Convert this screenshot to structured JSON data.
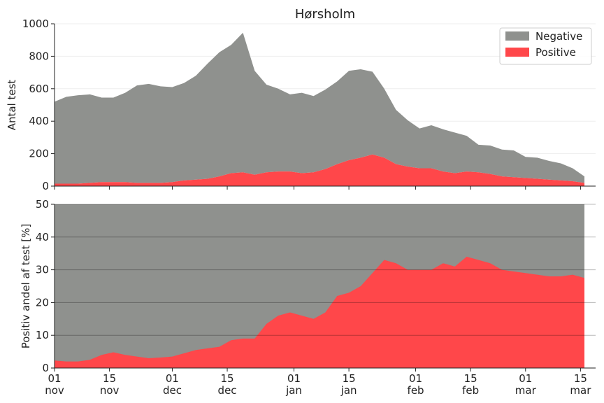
{
  "chart_data": [
    {
      "type": "area",
      "stacked": true,
      "title": "Hørsholm",
      "ylabel": "Antal test",
      "xlabel": "",
      "ylim": [
        0,
        1000
      ],
      "yticks": [
        0,
        200,
        400,
        600,
        800,
        1000
      ],
      "legend": "top-right",
      "grid": true,
      "x": [
        "11-01",
        "11-04",
        "11-07",
        "11-10",
        "11-13",
        "11-16",
        "11-19",
        "11-22",
        "11-25",
        "11-28",
        "12-01",
        "12-04",
        "12-07",
        "12-10",
        "12-13",
        "12-16",
        "12-19",
        "12-22",
        "12-25",
        "12-28",
        "12-31",
        "01-03",
        "01-06",
        "01-09",
        "01-12",
        "01-15",
        "01-18",
        "01-21",
        "01-24",
        "01-27",
        "01-30",
        "02-02",
        "02-05",
        "02-08",
        "02-11",
        "02-14",
        "02-17",
        "02-20",
        "02-23",
        "02-26",
        "03-01",
        "03-04",
        "03-07",
        "03-10",
        "03-13",
        "03-16"
      ],
      "series": [
        {
          "name": "Negative",
          "color": "#8f918e",
          "values": [
            505,
            535,
            545,
            545,
            520,
            520,
            550,
            600,
            610,
            595,
            585,
            600,
            640,
            710,
            765,
            790,
            860,
            640,
            540,
            510,
            475,
            495,
            470,
            490,
            510,
            550,
            545,
            510,
            425,
            335,
            285,
            245,
            265,
            260,
            250,
            220,
            170,
            175,
            165,
            165,
            130,
            130,
            115,
            105,
            80,
            40
          ]
        },
        {
          "name": "Positive",
          "color": "#ff474a",
          "values": [
            15,
            15,
            15,
            20,
            25,
            25,
            25,
            20,
            20,
            20,
            25,
            35,
            40,
            45,
            60,
            80,
            85,
            70,
            85,
            90,
            90,
            80,
            85,
            105,
            135,
            160,
            175,
            195,
            175,
            135,
            120,
            110,
            110,
            90,
            80,
            90,
            85,
            75,
            60,
            55,
            50,
            45,
            40,
            35,
            30,
            20
          ]
        }
      ]
    },
    {
      "type": "area",
      "ylabel": "Positiv andel af test [%]",
      "xlabel": "",
      "ylim": [
        0,
        50
      ],
      "yticks": [
        0,
        10,
        20,
        30,
        40,
        50
      ],
      "grid": true,
      "background_color": "#8f918e",
      "x_tick_labels": [
        {
          "day": "01",
          "month": "nov"
        },
        {
          "day": "15",
          "month": "nov"
        },
        {
          "day": "01",
          "month": "dec"
        },
        {
          "day": "15",
          "month": "dec"
        },
        {
          "day": "01",
          "month": "jan"
        },
        {
          "day": "15",
          "month": "jan"
        },
        {
          "day": "01",
          "month": "feb"
        },
        {
          "day": "15",
          "month": "feb"
        },
        {
          "day": "01",
          "month": "mar"
        },
        {
          "day": "15",
          "month": "mar"
        }
      ],
      "x": [
        "11-01",
        "11-04",
        "11-07",
        "11-10",
        "11-13",
        "11-16",
        "11-19",
        "11-22",
        "11-25",
        "11-28",
        "12-01",
        "12-04",
        "12-07",
        "12-10",
        "12-13",
        "12-16",
        "12-19",
        "12-22",
        "12-25",
        "12-28",
        "12-31",
        "01-03",
        "01-06",
        "01-09",
        "01-12",
        "01-15",
        "01-18",
        "01-21",
        "01-24",
        "01-27",
        "01-30",
        "02-02",
        "02-05",
        "02-08",
        "02-11",
        "02-14",
        "02-17",
        "02-20",
        "02-23",
        "02-26",
        "03-01",
        "03-04",
        "03-07",
        "03-10",
        "03-13",
        "03-16"
      ],
      "series": [
        {
          "name": "Positive",
          "color": "#ff474a",
          "values": [
            2.3,
            2,
            2,
            2.5,
            4,
            4.8,
            4,
            3.5,
            3,
            3.2,
            3.5,
            4.5,
            5.5,
            6,
            6.5,
            8.5,
            9,
            9,
            13.5,
            16,
            17,
            16,
            15,
            17,
            22,
            23,
            25,
            29,
            33,
            32,
            30,
            30,
            30,
            32,
            31,
            34,
            33,
            32,
            30,
            29.5,
            29,
            28.5,
            28,
            28,
            28.5,
            27.5
          ]
        }
      ]
    }
  ]
}
